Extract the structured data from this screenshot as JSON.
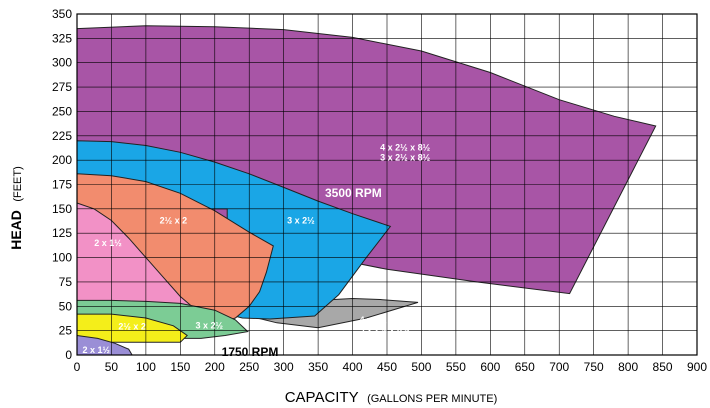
{
  "chart_data": {
    "type": "area",
    "title": "",
    "xlabel_main": "CAPACITY",
    "xlabel_unit": "(GALLONS PER MINUTE)",
    "ylabel_main": "HEAD",
    "ylabel_unit": "(FEET)",
    "xlim": [
      0,
      900
    ],
    "ylim": [
      0,
      350
    ],
    "x_ticks": [
      0,
      50,
      100,
      150,
      200,
      250,
      300,
      350,
      400,
      450,
      500,
      550,
      600,
      650,
      700,
      750,
      800,
      850,
      900
    ],
    "y_ticks": [
      0,
      25,
      50,
      75,
      100,
      125,
      150,
      175,
      200,
      225,
      250,
      275,
      300,
      325,
      350
    ],
    "grid": true,
    "rpm_labels": [
      {
        "text": "3500 RPM",
        "x": 360,
        "y": 162
      },
      {
        "text": "1750 RPM",
        "x": 210,
        "y": -1
      }
    ],
    "regions": [
      {
        "name": "4 x 2½ x 8½ / 3 x 2½ x 8½ (3500 RPM)",
        "color": "#a855a6",
        "labels": [
          "4 x 2½ x 8½",
          "3 x 2½ x 8½"
        ],
        "label_at": [
          440,
          210
        ],
        "label_color": "#ffffff",
        "points": [
          [
            0,
            335
          ],
          [
            100,
            338
          ],
          [
            200,
            337
          ],
          [
            300,
            334
          ],
          [
            400,
            326
          ],
          [
            500,
            312
          ],
          [
            600,
            290
          ],
          [
            700,
            262
          ],
          [
            780,
            245
          ],
          [
            840,
            235
          ],
          [
            715,
            63
          ],
          [
            580,
            75
          ],
          [
            450,
            88
          ],
          [
            350,
            102
          ],
          [
            300,
            112
          ],
          [
            280,
            115
          ],
          [
            270,
            118
          ],
          [
            0,
            118
          ]
        ]
      },
      {
        "name": "4 x 2½ x 8½ / 3 x 2½ x 8½ (1750 RPM)",
        "color": "#a8a8a8",
        "labels": [
          "4 x 2½ x 8½",
          "3 x 2½ x 8½"
        ],
        "label_at": [
          410,
          33
        ],
        "label_color": "#000000",
        "points": [
          [
            230,
            50
          ],
          [
            290,
            53
          ],
          [
            350,
            56
          ],
          [
            400,
            58
          ],
          [
            440,
            57
          ],
          [
            495,
            54
          ],
          [
            420,
            38
          ],
          [
            350,
            28
          ],
          [
            290,
            33
          ],
          [
            250,
            40
          ],
          [
            230,
            42
          ]
        ]
      },
      {
        "name": "3 x 2½ (3500 RPM)",
        "color": "#1aa6e6",
        "labels": [
          "3 x 2½"
        ],
        "label_at": [
          305,
          135
        ],
        "label_color": "#ffffff",
        "points": [
          [
            0,
            220
          ],
          [
            50,
            219
          ],
          [
            100,
            215
          ],
          [
            150,
            208
          ],
          [
            200,
            198
          ],
          [
            250,
            186
          ],
          [
            300,
            172
          ],
          [
            350,
            158
          ],
          [
            400,
            145
          ],
          [
            455,
            132
          ],
          [
            420,
            100
          ],
          [
            380,
            62
          ],
          [
            345,
            40
          ],
          [
            280,
            37
          ],
          [
            240,
            38
          ],
          [
            218,
            42
          ],
          [
            218,
            150
          ],
          [
            0,
            150
          ]
        ]
      },
      {
        "name": "2½ x 2 (3500 RPM)",
        "color": "#f28c6e",
        "labels": [
          "2½ x 2"
        ],
        "label_at": [
          120,
          135
        ],
        "label_color": "#ffffff",
        "points": [
          [
            0,
            186
          ],
          [
            50,
            184
          ],
          [
            100,
            178
          ],
          [
            150,
            166
          ],
          [
            200,
            148
          ],
          [
            250,
            126
          ],
          [
            285,
            112
          ],
          [
            275,
            85
          ],
          [
            265,
            65
          ],
          [
            250,
            50
          ],
          [
            230,
            38
          ],
          [
            205,
            32
          ],
          [
            195,
            30
          ],
          [
            0,
            30
          ]
        ]
      },
      {
        "name": "2 x 1½ (3500 RPM)",
        "color": "#f291c6",
        "labels": [
          "2 x 1½"
        ],
        "label_at": [
          25,
          112
        ],
        "label_color": "#ffffff",
        "points": [
          [
            0,
            156
          ],
          [
            25,
            150
          ],
          [
            50,
            138
          ],
          [
            75,
            120
          ],
          [
            100,
            100
          ],
          [
            125,
            80
          ],
          [
            150,
            60
          ],
          [
            175,
            45
          ],
          [
            200,
            35
          ],
          [
            180,
            30
          ],
          [
            0,
            30
          ]
        ]
      },
      {
        "name": "3 x 2½ (1750 RPM)",
        "color": "#7ccc95",
        "labels": [
          "3 x 2½"
        ],
        "label_at": [
          172,
          27
        ],
        "label_color": "#ffffff",
        "points": [
          [
            0,
            56
          ],
          [
            50,
            56
          ],
          [
            100,
            55
          ],
          [
            150,
            53
          ],
          [
            200,
            46
          ],
          [
            230,
            36
          ],
          [
            248,
            24
          ],
          [
            215,
            20
          ],
          [
            180,
            17
          ],
          [
            160,
            17
          ],
          [
            0,
            17
          ]
        ]
      },
      {
        "name": "2½ x 2 (1750 RPM)",
        "color": "#f4ee1a",
        "labels": [
          "2½ x 2"
        ],
        "label_at": [
          60,
          26
        ],
        "label_color": "#000000",
        "points": [
          [
            0,
            42
          ],
          [
            50,
            42
          ],
          [
            100,
            38
          ],
          [
            140,
            30
          ],
          [
            160,
            20
          ],
          [
            150,
            13
          ],
          [
            100,
            13
          ],
          [
            50,
            13
          ],
          [
            0,
            13
          ]
        ]
      },
      {
        "name": "2 x 1½ (1750 RPM)",
        "color": "#9a8ed6",
        "labels": [
          "2 x 1½"
        ],
        "label_at": [
          8,
          2
        ],
        "label_color": "#ffffff",
        "points": [
          [
            0,
            20
          ],
          [
            30,
            17
          ],
          [
            55,
            12
          ],
          [
            75,
            6
          ],
          [
            80,
            0
          ],
          [
            0,
            0
          ]
        ]
      }
    ]
  }
}
